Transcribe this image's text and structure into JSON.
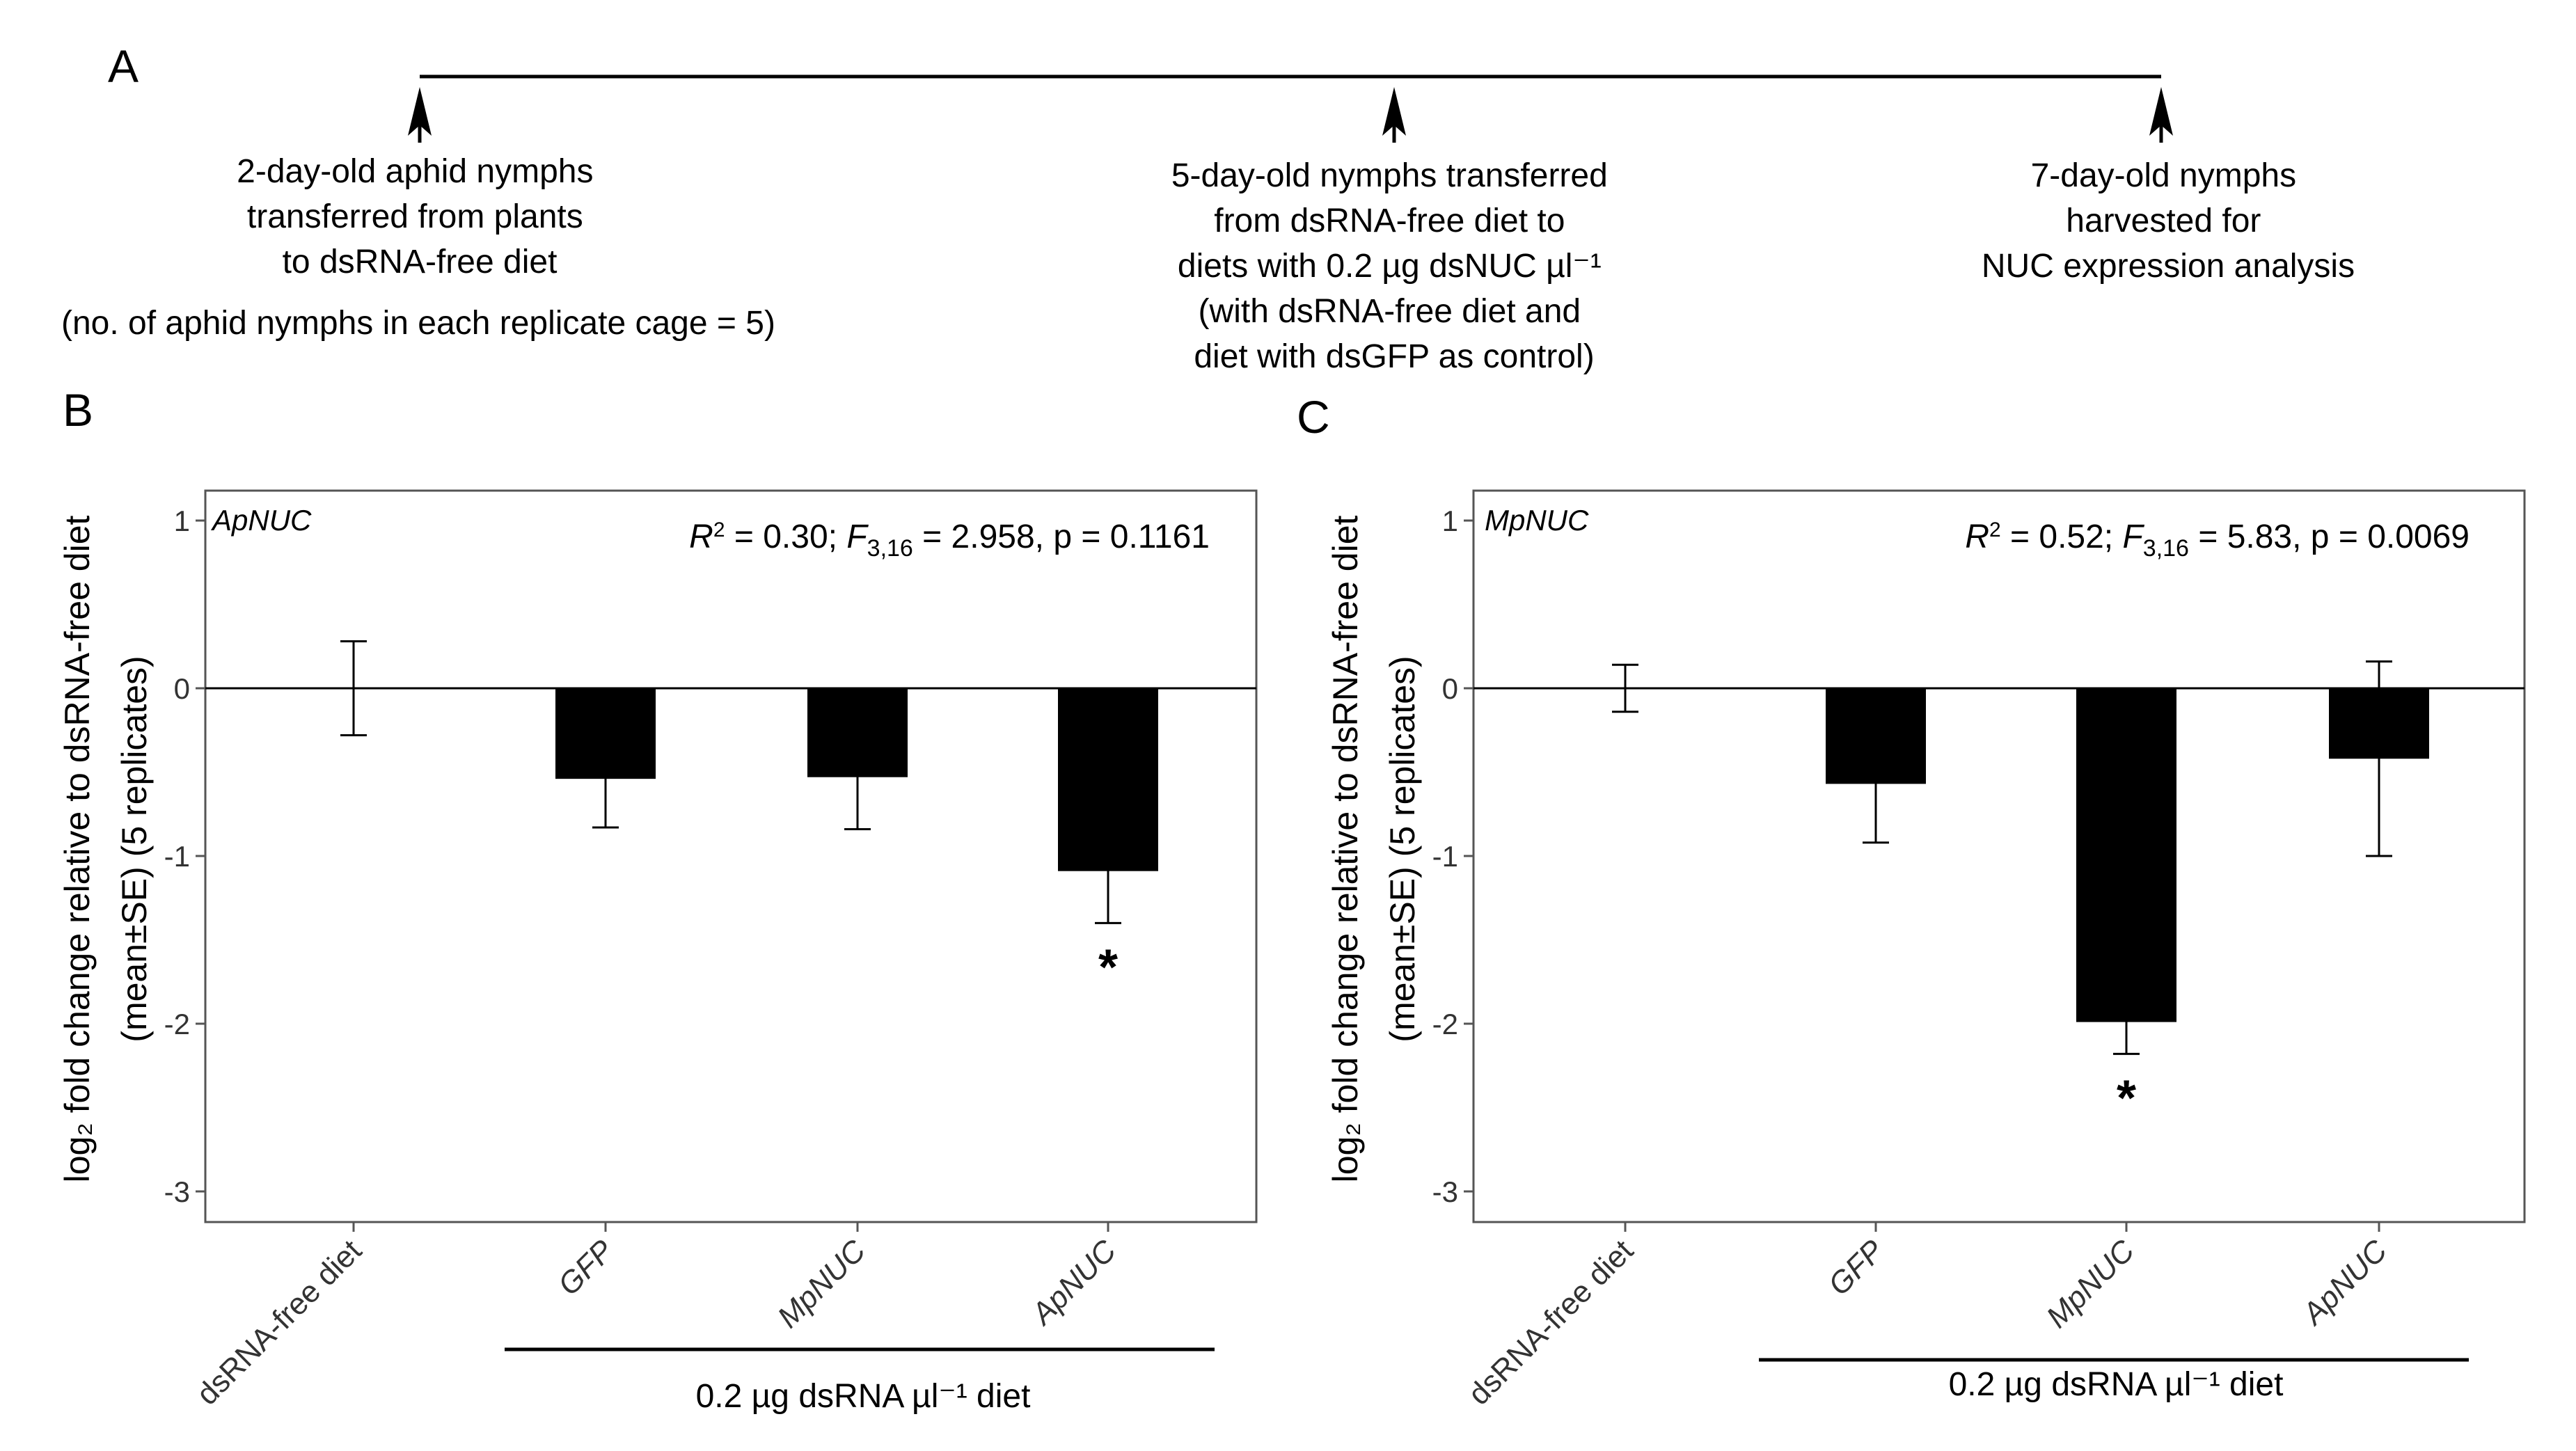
{
  "panelA": {
    "letter": "A",
    "timeline": [
      {
        "lines": [
          "2-day-old aphid nymphs",
          "transferred from plants",
          "to dsRNA-free diet"
        ]
      },
      {
        "lines": [
          "5-day-old nymphs transferred",
          "from dsRNA-free diet to",
          "diets with 0.2 µg dsNUC µl⁻¹",
          "(with dsRNA-free diet and",
          "diet with dsGFP as control)"
        ]
      },
      {
        "lines": [
          "7-day-old nymphs",
          "harvested for",
          "NUC expression analysis"
        ]
      }
    ],
    "note": "(no. of aphid nymphs in each replicate cage = 5)"
  },
  "axes_common": {
    "ylabel_line1": "log₂ fold change relative to dsRNA-free diet",
    "ylabel_line2": "(mean±SE) (5 replicates)",
    "bracket_label": "0.2 µg dsRNA µl⁻¹ diet"
  },
  "chart_data": [
    {
      "type": "bar",
      "panel": "B",
      "gene": "ApNUC",
      "stats": {
        "r2": "0.30",
        "df": "3,16",
        "f": "2.958",
        "p": "0.1161"
      },
      "categories": [
        "dsRNA-free diet",
        "GFP",
        "MpNUC",
        "ApNUC"
      ],
      "values": [
        0,
        -0.54,
        -0.53,
        -1.09
      ],
      "errors": [
        0.28,
        0.29,
        0.31,
        0.31
      ],
      "significant": [
        false,
        false,
        false,
        true
      ],
      "ylim": [
        -3.2,
        1.2
      ],
      "yticks": [
        1,
        0,
        -1,
        -2,
        -3
      ],
      "star": "*"
    },
    {
      "type": "bar",
      "panel": "C",
      "gene": "MpNUC",
      "stats": {
        "r2": "0.52",
        "df": "3,16",
        "f": "5.83",
        "p": "0.0069"
      },
      "categories": [
        "dsRNA-free diet",
        "GFP",
        "MpNUC",
        "ApNUC"
      ],
      "values": [
        0,
        -0.57,
        -1.99,
        -0.42
      ],
      "errors": [
        0.14,
        0.35,
        0.19,
        0.58
      ],
      "errors_up": [
        0.14,
        0.35,
        0.19,
        0.58
      ],
      "errors_down": [
        0.14,
        0.35,
        0.19,
        0.58
      ],
      "err_upper_override": [
        0.14,
        null,
        null,
        0.16
      ],
      "significant": [
        false,
        false,
        true,
        false
      ],
      "ylim": [
        -3.2,
        1.2
      ],
      "yticks": [
        1,
        0,
        -1,
        -2,
        -3
      ],
      "star": "*"
    }
  ]
}
